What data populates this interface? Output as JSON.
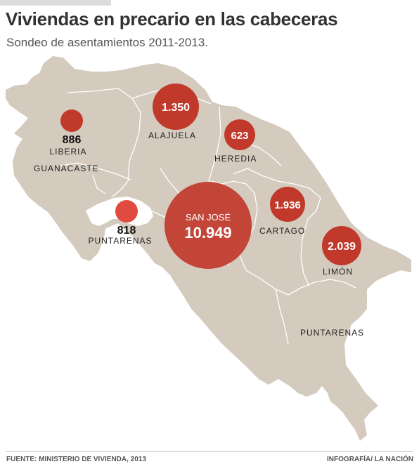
{
  "header": {
    "title": "Viviendas en precario en las cabeceras",
    "subtitle": "Sondeo de asentamientos 2011-2013."
  },
  "map": {
    "colors": {
      "land": "#d4cbbe",
      "border": "#ffffff",
      "bubble": "#c0392b",
      "bubble_light": "#e04b40"
    },
    "provinces": {
      "guanacaste": "GUANACASTE",
      "alajuela": "ALAJUELA",
      "heredia": "HEREDIA",
      "cartago": "CARTAGO",
      "limon": "LIMÓN",
      "puntarenas": "PUNTARENAS"
    },
    "bubbles": [
      {
        "id": "liberia",
        "place": "LIBERIA",
        "value": "886"
      },
      {
        "id": "puntarenas",
        "place": "PUNTARENAS",
        "value": "818"
      },
      {
        "id": "alajuela",
        "place": "ALAJUELA",
        "value": "1.350"
      },
      {
        "id": "heredia",
        "place": "HEREDIA",
        "value": "623"
      },
      {
        "id": "sanjose",
        "place": "SAN JOSÉ",
        "value": "10.949"
      },
      {
        "id": "cartago",
        "place": "CARTAGO",
        "value": "1.936"
      },
      {
        "id": "limon",
        "place": "LIMÓN",
        "value": "2.039"
      }
    ]
  },
  "footer": {
    "source": "FUENTE: MINISTERIO DE VIVIENDA, 2013",
    "credit": "INFOGRAFÍA/ LA NACIÓN"
  }
}
